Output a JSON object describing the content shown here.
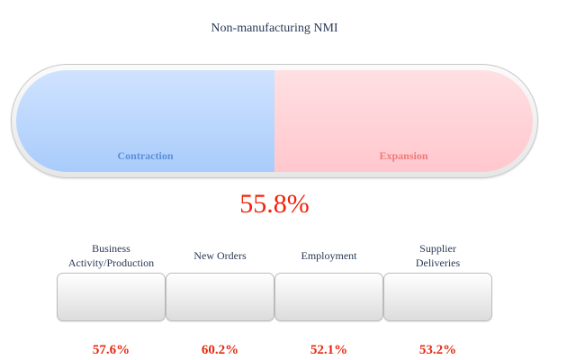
{
  "title": "Non-manufacturing NMI",
  "gauge": {
    "left_label": "Contraction",
    "right_label": "Expansion",
    "colors": {
      "contraction": "#a9ccfb",
      "expansion": "#ffc7cd"
    }
  },
  "overall": {
    "value": "55.8%"
  },
  "indices": [
    {
      "label": "Business\nActivity/Production",
      "value": "57.6%"
    },
    {
      "label": "New Orders",
      "value": "60.2%"
    },
    {
      "label": "Employment",
      "value": "52.1%"
    },
    {
      "label": "Supplier\nDeliveries",
      "value": "53.2%"
    }
  ],
  "colors": {
    "value_red": "#f2220a",
    "title_text": "#2a3a55"
  }
}
